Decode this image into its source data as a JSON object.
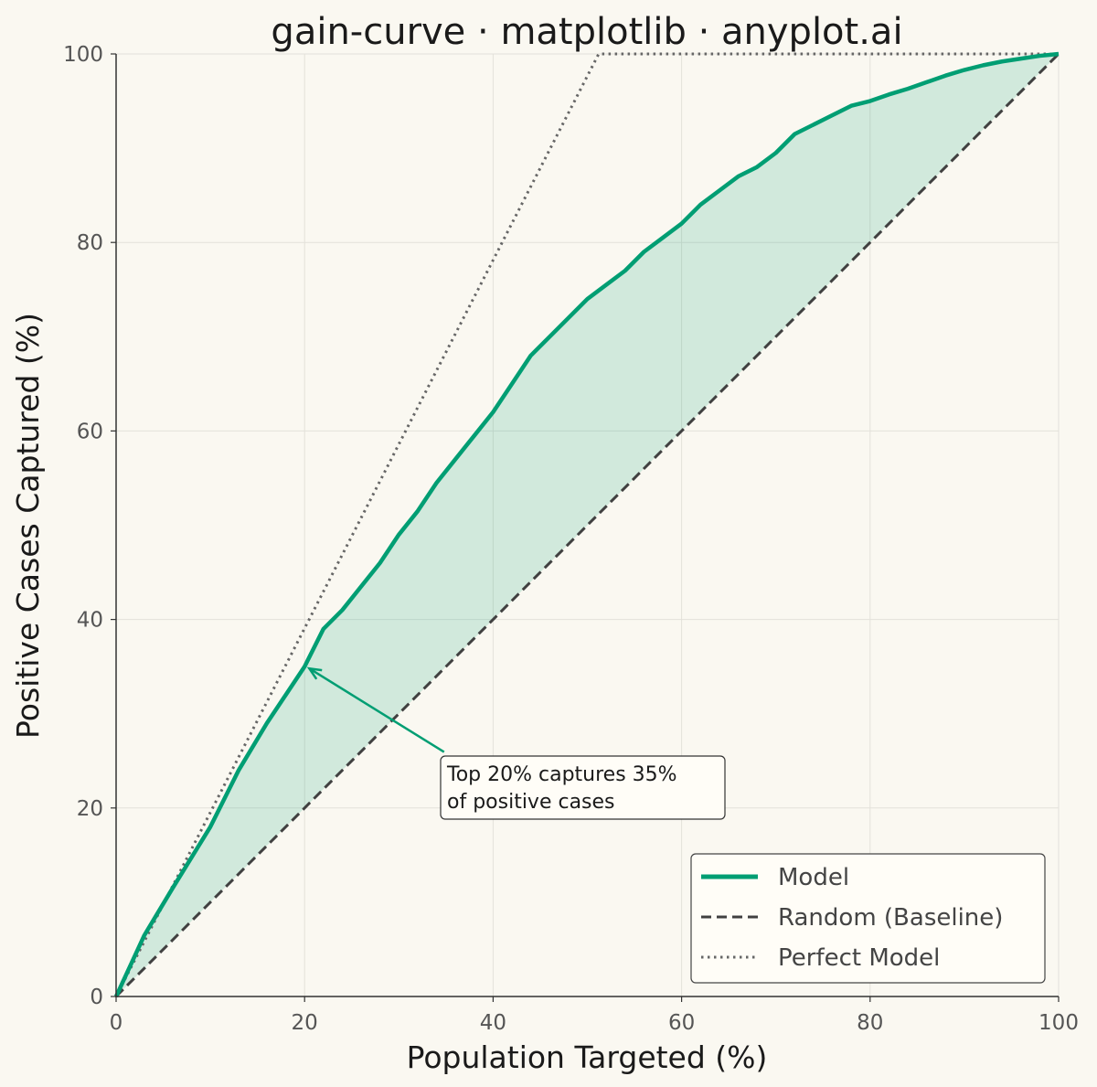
{
  "chart_data": {
    "type": "line",
    "title": "gain-curve · matplotlib · anyplot.ai",
    "xlabel": "Population Targeted (%)",
    "ylabel": "Positive Cases Captured (%)",
    "xlim": [
      0,
      100
    ],
    "ylim": [
      0,
      100
    ],
    "xticks": [
      "0",
      "20",
      "40",
      "60",
      "80",
      "100"
    ],
    "yticks": [
      "0",
      "20",
      "40",
      "60",
      "80",
      "100"
    ],
    "grid": true,
    "legend_position": "lower-right",
    "series": [
      {
        "name": "Model",
        "style": "solid",
        "color": "#009E73",
        "x": [
          0,
          3,
          6,
          10,
          13,
          16,
          18,
          20,
          22,
          24,
          26,
          28,
          30,
          32,
          34,
          36,
          38,
          40,
          42,
          44,
          46,
          48,
          50,
          52,
          54,
          56,
          58,
          60,
          62,
          64,
          66,
          68,
          70,
          72,
          74,
          76,
          78,
          80,
          82,
          84,
          86,
          88,
          90,
          92,
          94,
          96,
          98,
          100
        ],
        "y": [
          0,
          6.5,
          11.5,
          18,
          24,
          29,
          32,
          35,
          39,
          41,
          43.5,
          46,
          49,
          51.5,
          54.5,
          57,
          59.5,
          62,
          65,
          68,
          70,
          72,
          74,
          75.5,
          77,
          79,
          80.5,
          82,
          84,
          85.5,
          87,
          88,
          89.5,
          91.5,
          92.5,
          93.5,
          94.5,
          95,
          95.7,
          96.3,
          97,
          97.7,
          98.3,
          98.8,
          99.2,
          99.5,
          99.8,
          100
        ]
      },
      {
        "name": "Random (Baseline)",
        "style": "dashed",
        "color": "#404040",
        "x": [
          0,
          100
        ],
        "y": [
          0,
          100
        ]
      },
      {
        "name": "Perfect Model",
        "style": "dotted",
        "color": "#666666",
        "x": [
          0,
          51.2,
          100
        ],
        "y": [
          0,
          100,
          100
        ]
      }
    ],
    "fill_between": {
      "upper": "Model",
      "lower": "Random (Baseline)",
      "color": "#009E73",
      "opacity": 0.16
    },
    "annotation": {
      "lines": [
        "Top 20% captures 35%",
        "of positive cases"
      ],
      "point": [
        20.5,
        34.8
      ],
      "text_anchor": [
        34.8,
        20.7
      ]
    }
  }
}
